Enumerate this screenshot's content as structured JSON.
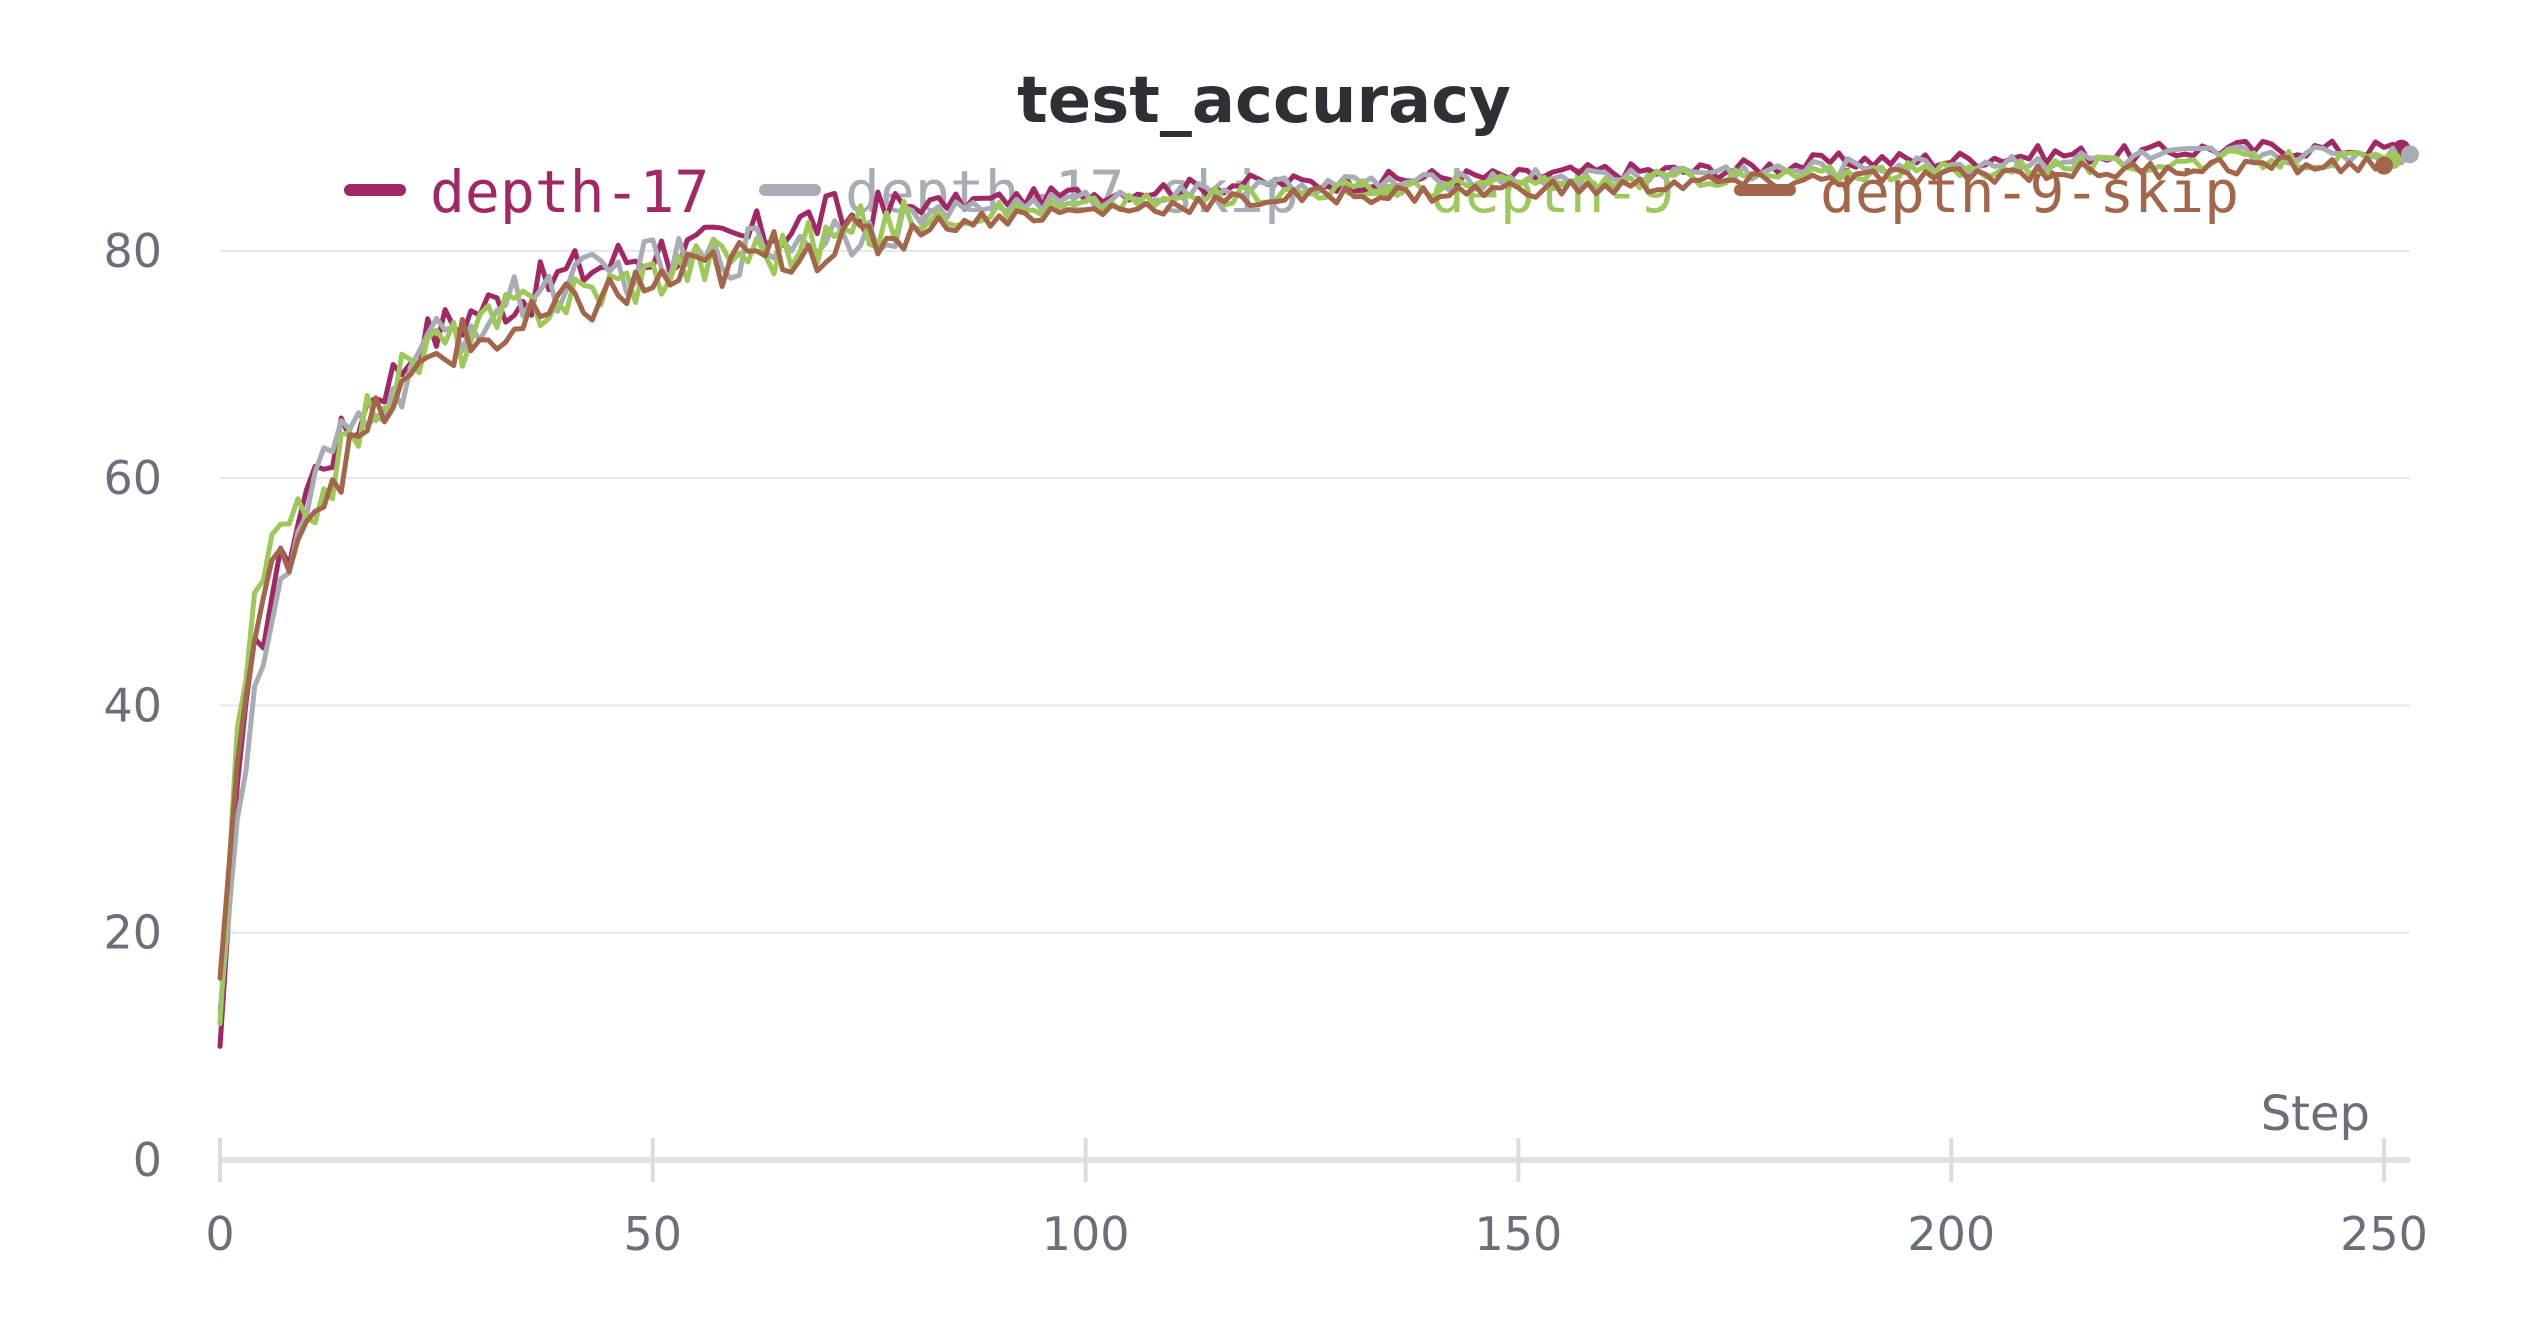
{
  "chart_data": {
    "type": "line",
    "title": "test_accuracy",
    "xlabel": "Step",
    "ylabel": "",
    "xlim": [
      0,
      253
    ],
    "ylim": [
      0,
      88
    ],
    "xticks": [
      0,
      50,
      100,
      150,
      200,
      250
    ],
    "yticks": [
      0,
      20,
      40,
      60,
      80
    ],
    "grid": true,
    "legend_position": "top-center",
    "series": [
      {
        "name": "depth-17",
        "color": "#a12864",
        "points": [
          [
            0,
            10
          ],
          [
            2,
            33
          ],
          [
            4,
            44
          ],
          [
            6,
            50
          ],
          [
            8,
            54
          ],
          [
            10,
            59
          ],
          [
            12,
            62
          ],
          [
            15,
            64
          ],
          [
            18,
            68
          ],
          [
            20,
            69
          ],
          [
            22,
            71
          ],
          [
            25,
            73
          ],
          [
            28,
            74
          ],
          [
            30,
            75
          ],
          [
            35,
            76
          ],
          [
            40,
            78
          ],
          [
            45,
            79
          ],
          [
            50,
            80
          ],
          [
            55,
            80
          ],
          [
            60,
            81
          ],
          [
            65,
            82
          ],
          [
            70,
            83
          ],
          [
            75,
            83
          ],
          [
            80,
            84
          ],
          [
            90,
            84.5
          ],
          [
            100,
            85
          ],
          [
            110,
            85.5
          ],
          [
            120,
            86
          ],
          [
            130,
            86
          ],
          [
            140,
            86.5
          ],
          [
            150,
            86.5
          ],
          [
            160,
            87
          ],
          [
            170,
            87
          ],
          [
            180,
            87.5
          ],
          [
            190,
            88
          ],
          [
            200,
            88
          ],
          [
            210,
            88.5
          ],
          [
            220,
            88.5
          ],
          [
            230,
            89
          ],
          [
            240,
            89
          ],
          [
            252,
            89
          ]
        ]
      },
      {
        "name": "depth-17-skip",
        "color": "#a8adb5",
        "points": [
          [
            0,
            13
          ],
          [
            2,
            30
          ],
          [
            4,
            42
          ],
          [
            6,
            47
          ],
          [
            8,
            52
          ],
          [
            10,
            57
          ],
          [
            12,
            61
          ],
          [
            15,
            64
          ],
          [
            18,
            67
          ],
          [
            20,
            66
          ],
          [
            22,
            70
          ],
          [
            25,
            72
          ],
          [
            28,
            73
          ],
          [
            30,
            74
          ],
          [
            35,
            76
          ],
          [
            40,
            77
          ],
          [
            45,
            78
          ],
          [
            50,
            79
          ],
          [
            55,
            79
          ],
          [
            60,
            80
          ],
          [
            65,
            81
          ],
          [
            70,
            81.5
          ],
          [
            75,
            82
          ],
          [
            80,
            83
          ],
          [
            90,
            84
          ],
          [
            100,
            84.5
          ],
          [
            110,
            85
          ],
          [
            120,
            85.5
          ],
          [
            130,
            86
          ],
          [
            140,
            86
          ],
          [
            150,
            86.5
          ],
          [
            160,
            86.5
          ],
          [
            170,
            87
          ],
          [
            180,
            87
          ],
          [
            190,
            87.5
          ],
          [
            200,
            87.5
          ],
          [
            210,
            88
          ],
          [
            220,
            88
          ],
          [
            230,
            88.5
          ],
          [
            240,
            88.5
          ],
          [
            253,
            88.5
          ]
        ]
      },
      {
        "name": "depth-9",
        "color": "#9dc95b",
        "points": [
          [
            0,
            12
          ],
          [
            2,
            38
          ],
          [
            4,
            48
          ],
          [
            6,
            54
          ],
          [
            8,
            55
          ],
          [
            10,
            57
          ],
          [
            12,
            59
          ],
          [
            15,
            63
          ],
          [
            18,
            67
          ],
          [
            20,
            68
          ],
          [
            22,
            70
          ],
          [
            25,
            72
          ],
          [
            28,
            72
          ],
          [
            30,
            73
          ],
          [
            35,
            75
          ],
          [
            40,
            76
          ],
          [
            45,
            77
          ],
          [
            50,
            78
          ],
          [
            55,
            79
          ],
          [
            60,
            80
          ],
          [
            65,
            80
          ],
          [
            70,
            81
          ],
          [
            75,
            82
          ],
          [
            80,
            82.5
          ],
          [
            90,
            83.5
          ],
          [
            100,
            84
          ],
          [
            110,
            84.5
          ],
          [
            120,
            85
          ],
          [
            130,
            85.5
          ],
          [
            140,
            85.5
          ],
          [
            150,
            86
          ],
          [
            160,
            86
          ],
          [
            170,
            86.5
          ],
          [
            180,
            86.5
          ],
          [
            190,
            87
          ],
          [
            200,
            87
          ],
          [
            210,
            87.5
          ],
          [
            220,
            87.5
          ],
          [
            230,
            88
          ],
          [
            240,
            88
          ],
          [
            251,
            88
          ]
        ]
      },
      {
        "name": "depth-9-skip",
        "color": "#a4664a",
        "points": [
          [
            0,
            16
          ],
          [
            2,
            35
          ],
          [
            4,
            46
          ],
          [
            6,
            51
          ],
          [
            8,
            54
          ],
          [
            10,
            57
          ],
          [
            12,
            59
          ],
          [
            15,
            62
          ],
          [
            18,
            65
          ],
          [
            20,
            67
          ],
          [
            22,
            68
          ],
          [
            25,
            71
          ],
          [
            28,
            72
          ],
          [
            30,
            72
          ],
          [
            35,
            73
          ],
          [
            40,
            75
          ],
          [
            45,
            76
          ],
          [
            50,
            77
          ],
          [
            55,
            78
          ],
          [
            60,
            79
          ],
          [
            65,
            80
          ],
          [
            70,
            80.5
          ],
          [
            75,
            81
          ],
          [
            80,
            82
          ],
          [
            90,
            83
          ],
          [
            100,
            83.5
          ],
          [
            110,
            84
          ],
          [
            120,
            84.5
          ],
          [
            130,
            85
          ],
          [
            140,
            85
          ],
          [
            150,
            85.5
          ],
          [
            160,
            85.5
          ],
          [
            170,
            86
          ],
          [
            180,
            86
          ],
          [
            190,
            86.5
          ],
          [
            200,
            86.5
          ],
          [
            210,
            87
          ],
          [
            220,
            87
          ],
          [
            230,
            87.5
          ],
          [
            240,
            87.5
          ],
          [
            250,
            87.5
          ]
        ]
      }
    ]
  }
}
